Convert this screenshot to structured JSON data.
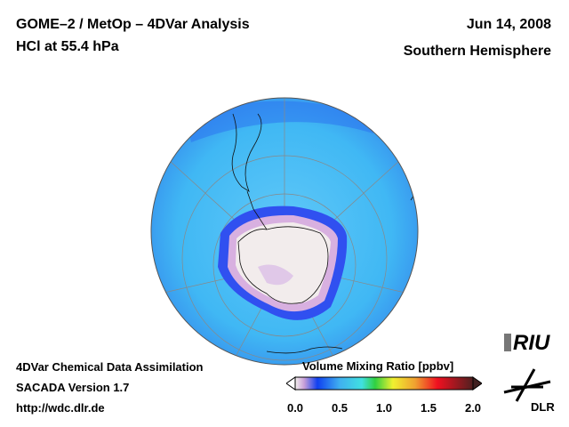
{
  "header": {
    "title": "GOME–2 / MetOp – 4DVar Analysis",
    "subtitle": "HCl at 55.4 hPa",
    "date": "Jun 14, 2008",
    "region": "Southern Hemisphere"
  },
  "footer": {
    "line1": "4DVar Chemical Data Assimilation",
    "line2": "SACADA Version 1.7",
    "line3": "http://wdc.dlr.de"
  },
  "colorbar": {
    "label": "Volume Mixing Ratio [ppbv]",
    "ticks": [
      "0.0",
      "0.5",
      "1.0",
      "1.5",
      "2.0"
    ],
    "min": 0,
    "max": 2,
    "stops": [
      [
        0,
        "#f4f0ee"
      ],
      [
        0.1,
        "#c8a0d8"
      ],
      [
        0.25,
        "#1040f0"
      ],
      [
        0.5,
        "#40b0f0"
      ],
      [
        0.75,
        "#40e0e0"
      ],
      [
        0.9,
        "#30d040"
      ],
      [
        1.1,
        "#f0f030"
      ],
      [
        1.35,
        "#f0a030"
      ],
      [
        1.6,
        "#f01020"
      ],
      [
        2.0,
        "#502020"
      ]
    ]
  },
  "logos": {
    "riu": "RIU",
    "dlr": "DLR"
  }
}
